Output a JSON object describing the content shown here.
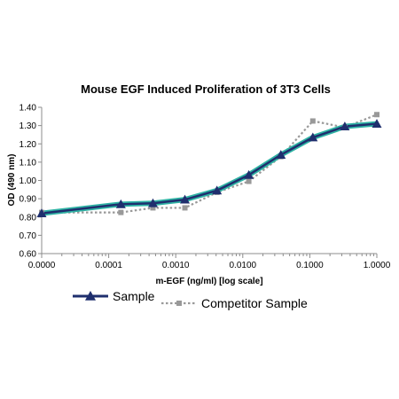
{
  "chart_data": {
    "type": "line",
    "title": "Mouse EGF Induced Proliferation of 3T3 Cells",
    "xlabel": "m-EGF (ng/ml) [log scale]",
    "ylabel": "OD (490 nm)",
    "x_scale": "log",
    "xlim": [
      1e-05,
      1.0
    ],
    "ylim": [
      0.6,
      1.4
    ],
    "x_ticks": [
      1e-05,
      0.0001,
      0.001,
      0.01,
      0.1,
      1.0
    ],
    "x_tick_labels": [
      "0.0000",
      "0.0001",
      "0.0010",
      "0.0100",
      "0.1000",
      "1.0000"
    ],
    "y_ticks": [
      0.6,
      0.7,
      0.8,
      0.9,
      1.0,
      1.1,
      1.2,
      1.3,
      1.4
    ],
    "y_tick_labels": [
      "0.60",
      "0.70",
      "0.80",
      "0.90",
      "1.00",
      "1.10",
      "1.20",
      "1.30",
      "1.40"
    ],
    "grid": false,
    "legend_position": "bottom",
    "series": [
      {
        "name": "Sample",
        "color": "#1f2f6e",
        "marker": "triangle",
        "line_style": "solid",
        "points": [
          [
            1e-05,
            0.82
          ],
          [
            0.000152,
            0.87
          ],
          [
            0.000457,
            0.875
          ],
          [
            0.00137,
            0.895
          ],
          [
            0.00412,
            0.945
          ],
          [
            0.0123,
            1.03
          ],
          [
            0.037,
            1.14
          ],
          [
            0.111,
            1.235
          ],
          [
            0.333,
            1.295
          ],
          [
            1.0,
            1.31
          ]
        ]
      },
      {
        "name": "Competitor Sample",
        "color": "#999999",
        "marker": "square",
        "line_style": "dotted",
        "points": [
          [
            1e-05,
            0.825
          ],
          [
            0.000152,
            0.825
          ],
          [
            0.000457,
            0.85
          ],
          [
            0.00137,
            0.85
          ],
          [
            0.00412,
            0.935
          ],
          [
            0.0123,
            0.995
          ],
          [
            0.037,
            1.13
          ],
          [
            0.111,
            1.325
          ],
          [
            0.333,
            1.29
          ],
          [
            1.0,
            1.36
          ]
        ]
      }
    ]
  }
}
